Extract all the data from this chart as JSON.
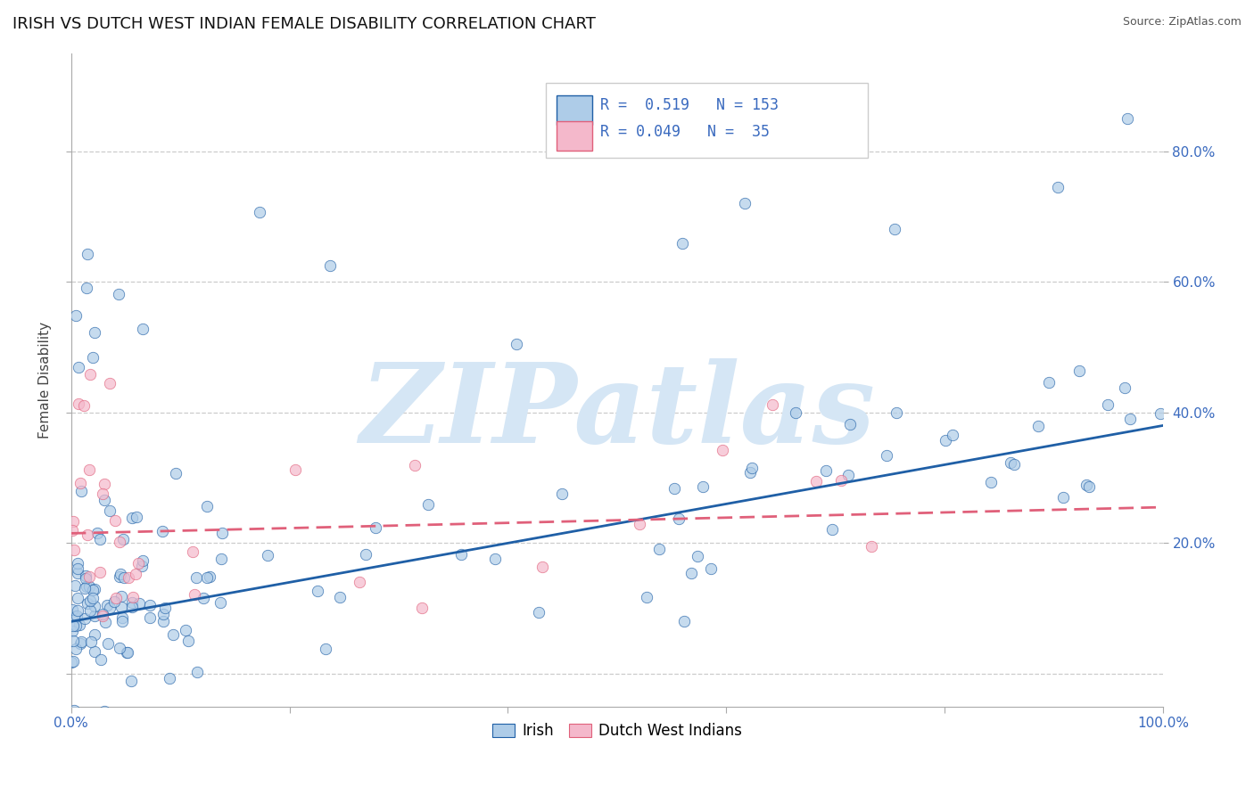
{
  "title": "IRISH VS DUTCH WEST INDIAN FEMALE DISABILITY CORRELATION CHART",
  "source": "Source: ZipAtlas.com",
  "ylabel": "Female Disability",
  "xlim": [
    0.0,
    1.0
  ],
  "ylim": [
    -0.05,
    0.95
  ],
  "yticks": [
    0.0,
    0.2,
    0.4,
    0.6,
    0.8
  ],
  "ytick_labels_right": [
    "20.0%",
    "40.0%",
    "60.0%",
    "80.0%"
  ],
  "xticks": [
    0.0,
    0.2,
    0.4,
    0.6,
    0.8,
    1.0
  ],
  "xtick_labels": [
    "0.0%",
    "",
    "",
    "",
    "",
    "100.0%"
  ],
  "irish_R": 0.519,
  "irish_N": 153,
  "dwi_R": 0.049,
  "dwi_N": 35,
  "irish_color": "#aecce8",
  "dwi_color": "#f4b8cb",
  "irish_line_color": "#1f5fa6",
  "dwi_line_color": "#e0607a",
  "watermark_text": "ZIPatlas",
  "watermark_color": "#d5e6f5",
  "background_color": "#ffffff",
  "grid_color": "#cccccc",
  "title_fontsize": 13,
  "label_fontsize": 11,
  "tick_fontsize": 11,
  "irish_line_slope": 0.3,
  "irish_line_intercept": 0.08,
  "dwi_line_slope": 0.04,
  "dwi_line_intercept": 0.215
}
